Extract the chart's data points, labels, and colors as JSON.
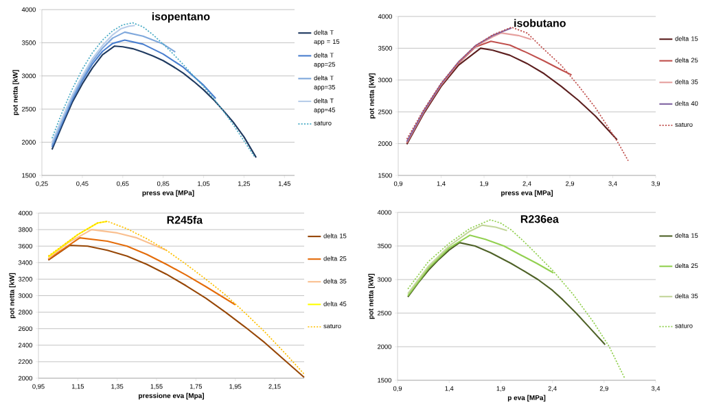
{
  "chart_data": [
    {
      "type": "line",
      "title": "isopentano",
      "xlabel": "press eva [MPa]",
      "ylabel": "pot netta [kW]",
      "grid": "y",
      "legend": "right",
      "xlim": [
        0.25,
        1.5
      ],
      "ylim": [
        1500,
        4000
      ],
      "xticks": [
        {
          "value": 0.25,
          "label": "0,25"
        },
        {
          "value": 0.45,
          "label": "0,45"
        },
        {
          "value": 0.65,
          "label": "0,65"
        },
        {
          "value": 0.85,
          "label": "0,85"
        },
        {
          "value": 1.05,
          "label": "1,05"
        },
        {
          "value": 1.25,
          "label": "1,25"
        },
        {
          "value": 1.45,
          "label": "1,45"
        }
      ],
      "yticks": [
        1500,
        2000,
        2500,
        3000,
        3500,
        4000
      ],
      "series": [
        {
          "name": "delta T app = 15",
          "color": "#1f3a60",
          "x": [
            0.3,
            0.35,
            0.4,
            0.45,
            0.5,
            0.55,
            0.61,
            0.65,
            0.7,
            0.75,
            0.8,
            0.85,
            0.9,
            0.95,
            1.0,
            1.05,
            1.1,
            1.15,
            1.2,
            1.25,
            1.31
          ],
          "values": [
            1890,
            2250,
            2600,
            2880,
            3120,
            3320,
            3450,
            3440,
            3410,
            3360,
            3300,
            3230,
            3140,
            3040,
            2920,
            2790,
            2640,
            2470,
            2290,
            2080,
            1770
          ]
        },
        {
          "name": "delta T app=25",
          "color": "#4a7fcf",
          "x": [
            0.3,
            0.35,
            0.4,
            0.45,
            0.5,
            0.55,
            0.6,
            0.66,
            0.75,
            0.85,
            0.95,
            1.05,
            1.11
          ],
          "values": [
            1930,
            2290,
            2640,
            2930,
            3180,
            3370,
            3490,
            3540,
            3480,
            3330,
            3130,
            2860,
            2660
          ]
        },
        {
          "name": "delta T app=35",
          "color": "#7fa8dc",
          "x": [
            0.3,
            0.35,
            0.4,
            0.45,
            0.5,
            0.55,
            0.6,
            0.66,
            0.75,
            0.85,
            0.91
          ],
          "values": [
            1960,
            2320,
            2670,
            2960,
            3220,
            3420,
            3570,
            3660,
            3600,
            3480,
            3360
          ]
        },
        {
          "name": "delta T app=45",
          "color": "#b8cde9",
          "x": [
            0.3,
            0.35,
            0.4,
            0.45,
            0.5,
            0.55,
            0.6,
            0.64,
            0.68,
            0.71
          ],
          "values": [
            2000,
            2360,
            2710,
            3000,
            3260,
            3460,
            3620,
            3710,
            3750,
            3760
          ]
        },
        {
          "name": "saturo",
          "color": "#4bacc6",
          "line_style": "dotted",
          "x": [
            0.3,
            0.35,
            0.4,
            0.45,
            0.5,
            0.55,
            0.6,
            0.65,
            0.7,
            0.75,
            0.8,
            0.85,
            0.9,
            0.95,
            1.0,
            1.05,
            1.1,
            1.15,
            1.2,
            1.25,
            1.3
          ],
          "values": [
            2060,
            2450,
            2800,
            3100,
            3350,
            3540,
            3680,
            3770,
            3800,
            3740,
            3620,
            3480,
            3330,
            3170,
            3000,
            2840,
            2660,
            2460,
            2250,
            2020,
            1790
          ]
        }
      ]
    },
    {
      "type": "line",
      "title": "isobutano",
      "xlabel": "press eva [MPa]",
      "ylabel": "pot netta [kW]",
      "grid": "y",
      "legend": "right",
      "xlim": [
        0.9,
        3.9
      ],
      "ylim": [
        1500,
        4000
      ],
      "xticks": [
        {
          "value": 0.9,
          "label": "0,9"
        },
        {
          "value": 1.4,
          "label": "1,4"
        },
        {
          "value": 1.9,
          "label": "1,9"
        },
        {
          "value": 2.4,
          "label": "2,4"
        },
        {
          "value": 2.9,
          "label": "2,9"
        },
        {
          "value": 3.4,
          "label": "3,4"
        },
        {
          "value": 3.9,
          "label": "3,9"
        }
      ],
      "yticks": [
        1500,
        2000,
        2500,
        3000,
        3500,
        4000
      ],
      "series": [
        {
          "name": "delta 15",
          "color": "#5c1f1f",
          "x": [
            1.0,
            1.2,
            1.4,
            1.6,
            1.86,
            2.0,
            2.2,
            2.4,
            2.6,
            2.8,
            3.0,
            3.2,
            3.45
          ],
          "values": [
            1990,
            2480,
            2900,
            3230,
            3500,
            3470,
            3390,
            3260,
            3100,
            2900,
            2680,
            2430,
            2060
          ]
        },
        {
          "name": "delta 25",
          "color": "#c0504d",
          "x": [
            1.0,
            1.2,
            1.4,
            1.6,
            1.8,
            1.98,
            2.2,
            2.4,
            2.6,
            2.8,
            2.92
          ],
          "values": [
            2010,
            2500,
            2920,
            3260,
            3520,
            3610,
            3550,
            3430,
            3300,
            3160,
            3080
          ]
        },
        {
          "name": "delta 35",
          "color": "#e6a09e",
          "x": [
            1.0,
            1.2,
            1.4,
            1.6,
            1.8,
            2.0,
            2.1,
            2.3,
            2.45
          ],
          "values": [
            2020,
            2510,
            2930,
            3270,
            3530,
            3680,
            3740,
            3700,
            3640
          ]
        },
        {
          "name": "delta 40",
          "color": "#8064a2",
          "x": [
            1.0,
            1.2,
            1.4,
            1.6,
            1.8,
            2.0,
            2.22
          ],
          "values": [
            2030,
            2520,
            2940,
            3280,
            3540,
            3700,
            3820
          ]
        },
        {
          "name": "saturo",
          "color": "#c0504d",
          "line_style": "dotted",
          "x": [
            1.0,
            1.2,
            1.4,
            1.6,
            1.8,
            2.0,
            2.22,
            2.4,
            2.6,
            2.8,
            3.0,
            3.2,
            3.45,
            3.58
          ],
          "values": [
            2070,
            2540,
            2950,
            3280,
            3540,
            3710,
            3830,
            3740,
            3480,
            3230,
            2910,
            2560,
            2040,
            1730
          ]
        }
      ]
    },
    {
      "type": "line",
      "title": "R245fa",
      "xlabel": "pressione eva [Mpa]",
      "ylabel": "pot netta [kW]",
      "grid": "y",
      "legend": "right",
      "xlim": [
        0.95,
        2.3
      ],
      "ylim": [
        2000,
        4000
      ],
      "xticks": [
        {
          "value": 0.95,
          "label": "0,95"
        },
        {
          "value": 1.15,
          "label": "1,15"
        },
        {
          "value": 1.35,
          "label": "1,35"
        },
        {
          "value": 1.55,
          "label": "1,55"
        },
        {
          "value": 1.75,
          "label": "1,75"
        },
        {
          "value": 1.95,
          "label": "1,95"
        },
        {
          "value": 2.15,
          "label": "2,15"
        }
      ],
      "yticks": [
        2000,
        2200,
        2400,
        2600,
        2800,
        3000,
        3200,
        3400,
        3600,
        3800,
        4000
      ],
      "series": [
        {
          "name": "delta 15",
          "color": "#974706",
          "x": [
            1.0,
            1.11,
            1.2,
            1.3,
            1.4,
            1.5,
            1.6,
            1.7,
            1.8,
            1.9,
            2.0,
            2.1,
            2.2,
            2.3
          ],
          "values": [
            3430,
            3610,
            3600,
            3550,
            3480,
            3380,
            3260,
            3120,
            2970,
            2800,
            2620,
            2430,
            2220,
            2010
          ]
        },
        {
          "name": "delta 25",
          "color": "#e46c0a",
          "x": [
            1.0,
            1.16,
            1.3,
            1.4,
            1.5,
            1.6,
            1.7,
            1.8,
            1.95
          ],
          "values": [
            3440,
            3700,
            3660,
            3600,
            3500,
            3380,
            3250,
            3110,
            2890
          ]
        },
        {
          "name": "delta 35",
          "color": "#fac090",
          "x": [
            1.0,
            1.1,
            1.22,
            1.35,
            1.45,
            1.6
          ],
          "values": [
            3450,
            3640,
            3800,
            3760,
            3700,
            3550
          ]
        },
        {
          "name": "delta 45",
          "color": "#ffff00",
          "x": [
            1.0,
            1.15,
            1.25,
            1.3
          ],
          "values": [
            3470,
            3740,
            3880,
            3900
          ]
        },
        {
          "name": "saturo",
          "color": "#ffc000",
          "line_style": "dotted",
          "x": [
            1.0,
            1.15,
            1.25,
            1.3,
            1.4,
            1.5,
            1.6,
            1.7,
            1.8,
            1.9,
            2.0,
            2.1,
            2.2,
            2.3
          ],
          "values": [
            3480,
            3740,
            3880,
            3900,
            3810,
            3690,
            3550,
            3380,
            3200,
            3010,
            2790,
            2560,
            2310,
            2050
          ]
        }
      ]
    },
    {
      "type": "line",
      "title": "R236ea",
      "xlabel": "p eva [MPa]",
      "ylabel": "pot netta [kW]",
      "grid": "y",
      "legend": "right",
      "xlim": [
        0.9,
        3.4
      ],
      "ylim": [
        1500,
        4000
      ],
      "xticks": [
        {
          "value": 0.9,
          "label": "0,9"
        },
        {
          "value": 1.4,
          "label": "1,4"
        },
        {
          "value": 1.9,
          "label": "1,9"
        },
        {
          "value": 2.4,
          "label": "2,4"
        },
        {
          "value": 2.9,
          "label": "2,9"
        },
        {
          "value": 3.4,
          "label": "3,4"
        }
      ],
      "yticks": [
        1500,
        2000,
        2500,
        3000,
        3500,
        4000
      ],
      "series": [
        {
          "name": "delta 15",
          "color": "#4f6228",
          "x": [
            1.0,
            1.1,
            1.2,
            1.3,
            1.4,
            1.5,
            1.65,
            1.8,
            2.0,
            2.1,
            2.26,
            2.4,
            2.5,
            2.63,
            2.75,
            2.91
          ],
          "values": [
            2740,
            2950,
            3140,
            3300,
            3440,
            3550,
            3500,
            3400,
            3240,
            3150,
            3000,
            2840,
            2700,
            2500,
            2300,
            2030
          ]
        },
        {
          "name": "delta 25",
          "color": "#92d050",
          "x": [
            1.0,
            1.2,
            1.4,
            1.6,
            1.75,
            1.93,
            2.1,
            2.25,
            2.41
          ],
          "values": [
            2760,
            3170,
            3470,
            3660,
            3600,
            3500,
            3360,
            3240,
            3100
          ]
        },
        {
          "name": "delta 35",
          "color": "#c3d69b",
          "x": [
            1.0,
            1.2,
            1.4,
            1.6,
            1.72,
            1.85,
            1.96
          ],
          "values": [
            2790,
            3200,
            3500,
            3720,
            3810,
            3780,
            3730
          ]
        },
        {
          "name": "saturo",
          "color": "#92d050",
          "line_style": "dotted",
          "x": [
            1.0,
            1.2,
            1.4,
            1.6,
            1.8,
            1.9,
            2.0,
            2.1,
            2.2,
            2.4,
            2.6,
            2.8,
            2.95,
            3.1
          ],
          "values": [
            2860,
            3270,
            3540,
            3760,
            3890,
            3840,
            3740,
            3600,
            3450,
            3140,
            2780,
            2360,
            2000,
            1530
          ]
        }
      ]
    }
  ]
}
